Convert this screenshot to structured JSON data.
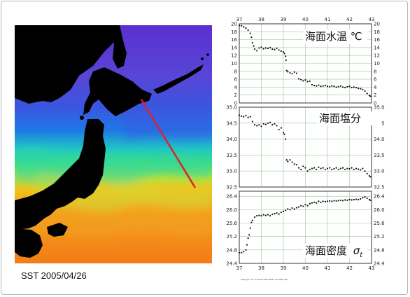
{
  "caption": "SST 2005/04/26",
  "footer_note": "2006 Jun 17 17:38:12  SBH 608 Line TNO dat",
  "colors": {
    "frame": "#b8b8b8",
    "land": "#000000",
    "section_line": "#e0202a",
    "panel_border": "#222222",
    "grid": "#9fc79a",
    "points": "#111111"
  },
  "chart_data": [
    {
      "type": "scatter",
      "title": "海面水温 ℃",
      "x_ticks": [
        "37",
        "38",
        "39",
        "40",
        "41",
        "42",
        "43"
      ],
      "xlim": [
        37,
        43
      ],
      "y_ticks": [
        "0",
        "2",
        "4",
        "6",
        "8",
        "10",
        "12",
        "14",
        "16",
        "18",
        "20"
      ],
      "ylim": [
        0,
        20
      ],
      "grid": true,
      "points": [
        [
          37.0,
          19.6
        ],
        [
          37.1,
          19.5
        ],
        [
          37.2,
          19.2
        ],
        [
          37.3,
          18.9
        ],
        [
          37.4,
          18.4
        ],
        [
          37.5,
          17.6
        ],
        [
          37.55,
          16.6
        ],
        [
          37.6,
          15.2
        ],
        [
          37.65,
          14.4
        ],
        [
          37.7,
          13.6
        ],
        [
          37.8,
          13.2
        ],
        [
          37.9,
          13.9
        ],
        [
          38.0,
          14.1
        ],
        [
          38.1,
          13.7
        ],
        [
          38.2,
          13.9
        ],
        [
          38.3,
          13.8
        ],
        [
          38.4,
          14.0
        ],
        [
          38.5,
          13.6
        ],
        [
          38.6,
          13.5
        ],
        [
          38.7,
          13.8
        ],
        [
          38.8,
          13.4
        ],
        [
          38.9,
          13.1
        ],
        [
          39.0,
          12.9
        ],
        [
          39.05,
          12.5
        ],
        [
          39.1,
          11.8
        ],
        [
          39.12,
          10.8
        ],
        [
          39.15,
          8.2
        ],
        [
          39.2,
          7.9
        ],
        [
          39.3,
          7.6
        ],
        [
          39.4,
          7.4
        ],
        [
          39.5,
          7.8
        ],
        [
          39.6,
          7.5
        ],
        [
          39.7,
          6.1
        ],
        [
          39.8,
          5.9
        ],
        [
          39.9,
          5.6
        ],
        [
          40.0,
          5.8
        ],
        [
          40.1,
          5.4
        ],
        [
          40.2,
          5.5
        ],
        [
          40.3,
          4.6
        ],
        [
          40.4,
          4.4
        ],
        [
          40.5,
          4.3
        ],
        [
          40.6,
          4.5
        ],
        [
          40.7,
          4.2
        ],
        [
          40.8,
          4.3
        ],
        [
          40.9,
          4.4
        ],
        [
          41.0,
          4.2
        ],
        [
          41.1,
          4.1
        ],
        [
          41.2,
          4.3
        ],
        [
          41.3,
          4.2
        ],
        [
          41.4,
          4.0
        ],
        [
          41.5,
          4.1
        ],
        [
          41.6,
          4.3
        ],
        [
          41.7,
          4.0
        ],
        [
          41.8,
          3.9
        ],
        [
          41.9,
          4.1
        ],
        [
          42.0,
          4.2
        ],
        [
          42.1,
          3.9
        ],
        [
          42.2,
          4.0
        ],
        [
          42.3,
          3.9
        ],
        [
          42.4,
          3.7
        ],
        [
          42.5,
          3.6
        ],
        [
          42.6,
          3.4
        ],
        [
          42.7,
          3.0
        ],
        [
          42.8,
          2.4
        ],
        [
          42.9,
          1.9
        ],
        [
          42.95,
          1.7
        ]
      ]
    },
    {
      "type": "scatter",
      "title": "海面塩分",
      "x_ticks": [
        "37",
        "38",
        "39",
        "40",
        "41",
        "42",
        "43"
      ],
      "xlim": [
        37,
        43
      ],
      "y_ticks": [
        "32.5",
        "33.0",
        "33.5",
        "34.0",
        "34.5",
        "35.0"
      ],
      "ylim": [
        32.5,
        35.0
      ],
      "grid": true,
      "points": [
        [
          37.0,
          34.75
        ],
        [
          37.1,
          34.72
        ],
        [
          37.2,
          34.7
        ],
        [
          37.3,
          34.74
        ],
        [
          37.4,
          34.68
        ],
        [
          37.5,
          34.7
        ],
        [
          37.6,
          34.55
        ],
        [
          37.7,
          34.45
        ],
        [
          37.8,
          34.42
        ],
        [
          37.9,
          34.45
        ],
        [
          38.0,
          34.4
        ],
        [
          38.1,
          34.48
        ],
        [
          38.2,
          34.46
        ],
        [
          38.3,
          34.5
        ],
        [
          38.4,
          34.52
        ],
        [
          38.5,
          34.45
        ],
        [
          38.6,
          34.48
        ],
        [
          38.7,
          34.42
        ],
        [
          38.8,
          34.3
        ],
        [
          38.9,
          34.35
        ],
        [
          39.0,
          34.2
        ],
        [
          39.05,
          34.15
        ],
        [
          39.1,
          34.0
        ],
        [
          39.15,
          33.35
        ],
        [
          39.2,
          33.3
        ],
        [
          39.3,
          33.35
        ],
        [
          39.4,
          33.28
        ],
        [
          39.5,
          33.22
        ],
        [
          39.6,
          33.2
        ],
        [
          39.7,
          33.1
        ],
        [
          39.8,
          33.05
        ],
        [
          39.9,
          33.15
        ],
        [
          40.0,
          33.1
        ],
        [
          40.1,
          33.0
        ],
        [
          40.2,
          33.05
        ],
        [
          40.3,
          33.08
        ],
        [
          40.4,
          33.1
        ],
        [
          40.5,
          33.05
        ],
        [
          40.6,
          33.12
        ],
        [
          40.7,
          33.08
        ],
        [
          40.8,
          33.1
        ],
        [
          40.9,
          33.05
        ],
        [
          41.0,
          33.08
        ],
        [
          41.1,
          33.1
        ],
        [
          41.2,
          33.05
        ],
        [
          41.3,
          33.07
        ],
        [
          41.4,
          33.1
        ],
        [
          41.5,
          33.05
        ],
        [
          41.6,
          33.08
        ],
        [
          41.7,
          33.1
        ],
        [
          41.8,
          33.05
        ],
        [
          41.9,
          33.08
        ],
        [
          42.0,
          33.07
        ],
        [
          42.1,
          33.1
        ],
        [
          42.2,
          33.05
        ],
        [
          42.3,
          33.08
        ],
        [
          42.4,
          33.06
        ],
        [
          42.5,
          33.04
        ],
        [
          42.6,
          33.08
        ],
        [
          42.7,
          33.0
        ],
        [
          42.8,
          32.92
        ],
        [
          42.9,
          32.85
        ],
        [
          42.95,
          32.82
        ]
      ]
    },
    {
      "type": "scatter",
      "title": "海面密度 σt",
      "x_ticks": [
        "37",
        "38",
        "39",
        "40",
        "41",
        "42",
        "43"
      ],
      "xlim": [
        37,
        43
      ],
      "y_ticks": [
        "24.4",
        "24.8",
        "25.2",
        "25.6",
        "26.0",
        "26.4"
      ],
      "ylim": [
        24.4,
        26.55
      ],
      "grid": true,
      "points": [
        [
          37.0,
          24.72
        ],
        [
          37.1,
          24.72
        ],
        [
          37.2,
          24.75
        ],
        [
          37.3,
          24.8
        ],
        [
          37.35,
          24.95
        ],
        [
          37.4,
          25.15
        ],
        [
          37.45,
          25.25
        ],
        [
          37.5,
          25.45
        ],
        [
          37.55,
          25.62
        ],
        [
          37.6,
          25.68
        ],
        [
          37.7,
          25.78
        ],
        [
          37.8,
          25.82
        ],
        [
          37.9,
          25.83
        ],
        [
          38.0,
          25.82
        ],
        [
          38.1,
          25.85
        ],
        [
          38.2,
          25.83
        ],
        [
          38.3,
          25.85
        ],
        [
          38.4,
          25.82
        ],
        [
          38.5,
          25.86
        ],
        [
          38.6,
          25.88
        ],
        [
          38.7,
          25.9
        ],
        [
          38.8,
          25.87
        ],
        [
          38.9,
          25.92
        ],
        [
          39.0,
          25.95
        ],
        [
          39.1,
          25.98
        ],
        [
          39.2,
          26.02
        ],
        [
          39.3,
          26.0
        ],
        [
          39.4,
          26.05
        ],
        [
          39.5,
          26.02
        ],
        [
          39.6,
          26.06
        ],
        [
          39.7,
          26.08
        ],
        [
          39.8,
          26.12
        ],
        [
          39.9,
          26.1
        ],
        [
          40.0,
          26.15
        ],
        [
          40.1,
          26.12
        ],
        [
          40.2,
          26.18
        ],
        [
          40.3,
          26.2
        ],
        [
          40.4,
          26.22
        ],
        [
          40.5,
          26.2
        ],
        [
          40.6,
          26.25
        ],
        [
          40.7,
          26.22
        ],
        [
          40.8,
          26.25
        ],
        [
          40.9,
          26.24
        ],
        [
          41.0,
          26.25
        ],
        [
          41.1,
          26.26
        ],
        [
          41.2,
          26.25
        ],
        [
          41.3,
          26.27
        ],
        [
          41.4,
          26.26
        ],
        [
          41.5,
          26.27
        ],
        [
          41.6,
          26.28
        ],
        [
          41.7,
          26.27
        ],
        [
          41.8,
          26.29
        ],
        [
          41.9,
          26.28
        ],
        [
          42.0,
          26.3
        ],
        [
          42.1,
          26.29
        ],
        [
          42.2,
          26.3
        ],
        [
          42.3,
          26.31
        ],
        [
          42.4,
          26.3
        ],
        [
          42.5,
          26.32
        ],
        [
          42.6,
          26.36
        ],
        [
          42.7,
          26.38
        ],
        [
          42.8,
          26.34
        ],
        [
          42.9,
          26.3
        ],
        [
          42.95,
          26.28
        ]
      ]
    }
  ]
}
